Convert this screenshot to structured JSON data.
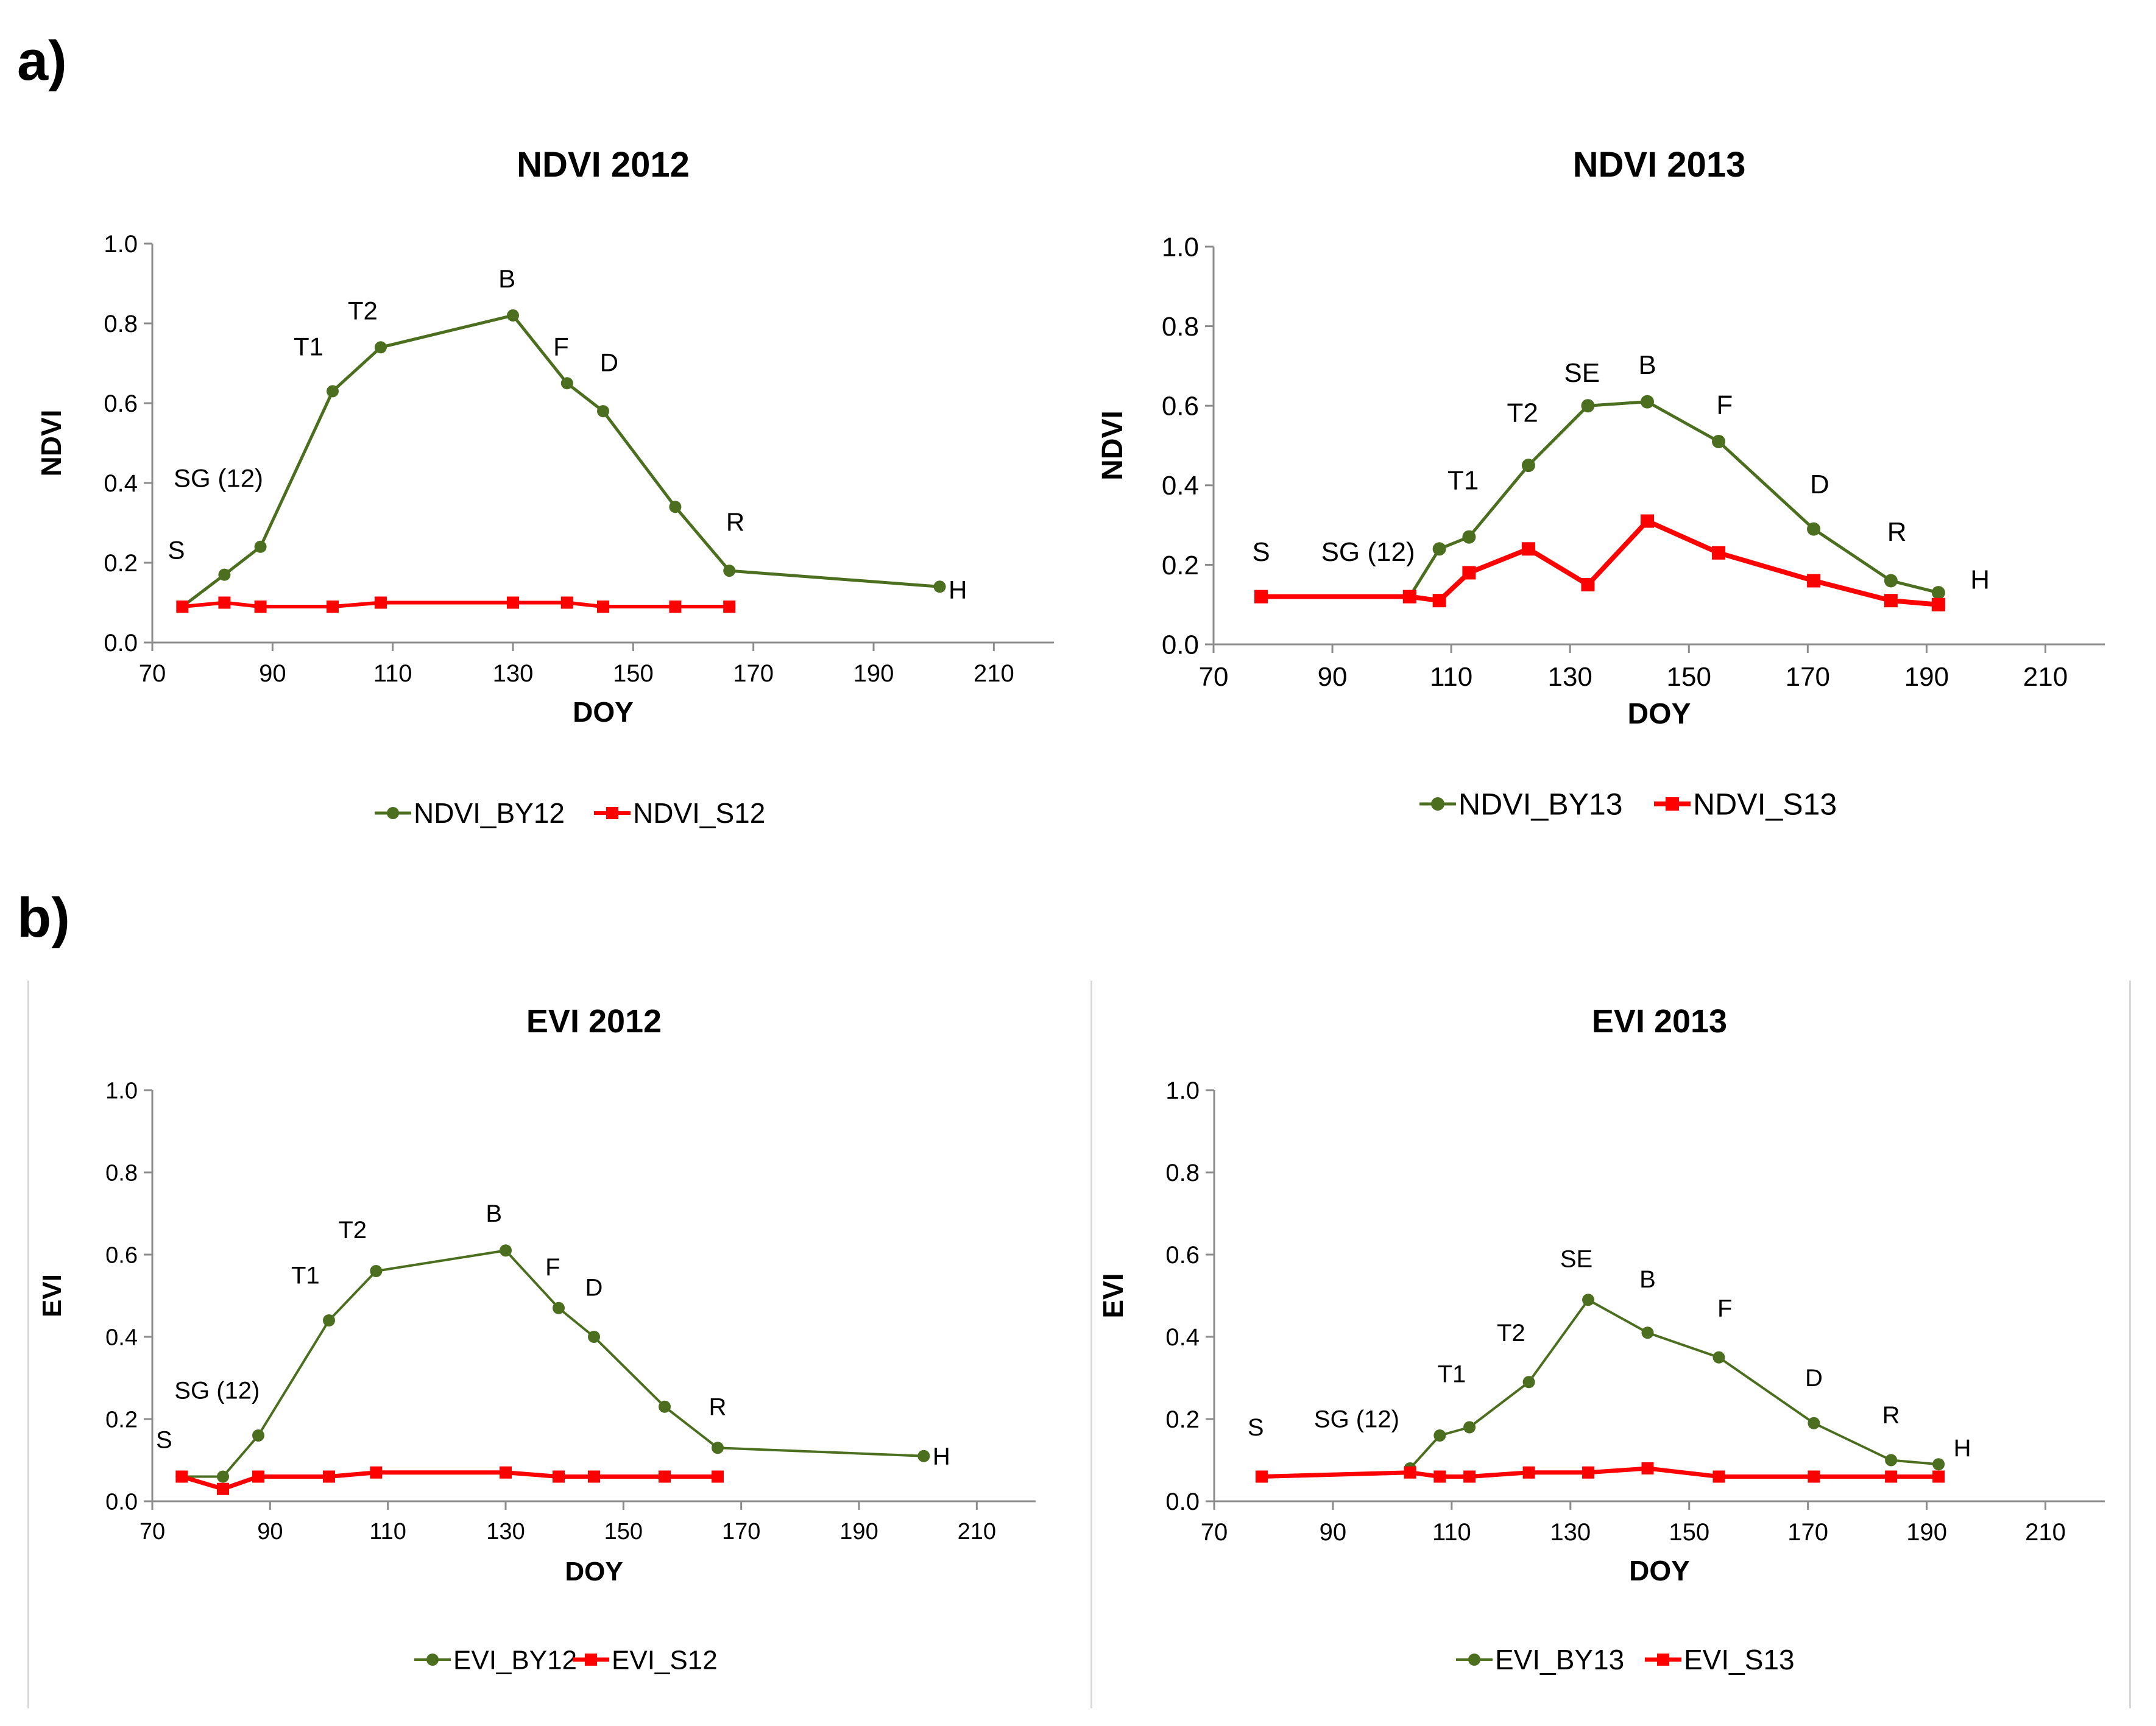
{
  "panels": {
    "a": "a)",
    "b": "b)"
  },
  "colors": {
    "green": "#4b6e1f",
    "red": "#ff0000",
    "axis": "#8c8c8c"
  },
  "chart_data": [
    {
      "id": "ndvi2012",
      "type": "line",
      "title": "NDVI 2012",
      "xlabel": "DOY",
      "ylabel": "NDVI",
      "xlim": [
        70,
        220
      ],
      "ylim": [
        0,
        1.0
      ],
      "xticks": [
        70,
        90,
        110,
        130,
        150,
        170,
        190,
        210
      ],
      "yticks": [
        "0.0",
        "0.2",
        "0.4",
        "0.6",
        "0.8",
        "1.0"
      ],
      "series": [
        {
          "name": "NDVI_BY12",
          "color": "#4b6e1f",
          "marker": "circle",
          "x": [
            75,
            82,
            88,
            100,
            108,
            130,
            139,
            145,
            157,
            166,
            201
          ],
          "y": [
            0.09,
            0.17,
            0.24,
            0.63,
            0.74,
            0.82,
            0.65,
            0.58,
            0.34,
            0.18,
            0.14
          ]
        },
        {
          "name": "NDVI_S12",
          "color": "#ff0000",
          "marker": "square",
          "x": [
            75,
            82,
            88,
            100,
            108,
            130,
            139,
            145,
            157,
            166
          ],
          "y": [
            0.09,
            0.1,
            0.09,
            0.09,
            0.1,
            0.1,
            0.1,
            0.09,
            0.09,
            0.09
          ]
        }
      ],
      "annotations": [
        {
          "text": "S",
          "x": 74,
          "y": 0.21
        },
        {
          "text": "SG (12)",
          "x": 81,
          "y": 0.39
        },
        {
          "text": "T1",
          "x": 96,
          "y": 0.72
        },
        {
          "text": "T2",
          "x": 105,
          "y": 0.81
        },
        {
          "text": "B",
          "x": 129,
          "y": 0.89
        },
        {
          "text": "F",
          "x": 138,
          "y": 0.72
        },
        {
          "text": "D",
          "x": 146,
          "y": 0.68
        },
        {
          "text": "R",
          "x": 167,
          "y": 0.28
        },
        {
          "text": "H",
          "x": 204,
          "y": 0.11
        }
      ]
    },
    {
      "id": "ndvi2013",
      "type": "line",
      "title": "NDVI 2013",
      "xlabel": "DOY",
      "ylabel": "NDVI",
      "xlim": [
        70,
        220
      ],
      "ylim": [
        0,
        1.0
      ],
      "xticks": [
        70,
        90,
        110,
        130,
        150,
        170,
        190,
        210
      ],
      "yticks": [
        "0.0",
        "0.2",
        "0.4",
        "0.6",
        "0.8",
        "1.0"
      ],
      "series": [
        {
          "name": "NDVI_BY13",
          "color": "#4b6e1f",
          "marker": "circle",
          "x": [
            103,
            108,
            113,
            123,
            133,
            143,
            155,
            171,
            184,
            192
          ],
          "y": [
            0.12,
            0.24,
            0.27,
            0.45,
            0.6,
            0.61,
            0.51,
            0.29,
            0.16,
            0.13
          ]
        },
        {
          "name": "NDVI_S13",
          "color": "#ff0000",
          "marker": "square",
          "x": [
            78,
            103,
            108,
            113,
            123,
            133,
            143,
            155,
            171,
            184,
            192
          ],
          "y": [
            0.12,
            0.12,
            0.11,
            0.18,
            0.24,
            0.15,
            0.31,
            0.23,
            0.16,
            0.11,
            0.1
          ]
        }
      ],
      "annotations": [
        {
          "text": "S",
          "x": 78,
          "y": 0.21
        },
        {
          "text": "SG (12)",
          "x": 96,
          "y": 0.21
        },
        {
          "text": "T1",
          "x": 112,
          "y": 0.39
        },
        {
          "text": "T2",
          "x": 122,
          "y": 0.56
        },
        {
          "text": "SE",
          "x": 132,
          "y": 0.66
        },
        {
          "text": "B",
          "x": 143,
          "y": 0.68
        },
        {
          "text": "F",
          "x": 156,
          "y": 0.58
        },
        {
          "text": "D",
          "x": 172,
          "y": 0.38
        },
        {
          "text": "R",
          "x": 185,
          "y": 0.26
        },
        {
          "text": "H",
          "x": 199,
          "y": 0.14
        }
      ]
    },
    {
      "id": "evi2012",
      "type": "line",
      "title": "EVI 2012",
      "xlabel": "DOY",
      "ylabel": "EVI",
      "xlim": [
        70,
        220
      ],
      "ylim": [
        0,
        1.0
      ],
      "xticks": [
        70,
        90,
        110,
        130,
        150,
        170,
        190,
        210
      ],
      "yticks": [
        "0.0",
        "0.2",
        "0.4",
        "0.6",
        "0.8",
        "1.0"
      ],
      "series": [
        {
          "name": "EVI_BY12",
          "color": "#4b6e1f",
          "marker": "circle",
          "x": [
            75,
            82,
            88,
            100,
            108,
            130,
            139,
            145,
            157,
            166,
            201
          ],
          "y": [
            0.06,
            0.06,
            0.16,
            0.44,
            0.56,
            0.61,
            0.47,
            0.4,
            0.23,
            0.13,
            0.11
          ]
        },
        {
          "name": "EVI_S12",
          "color": "#ff0000",
          "marker": "square",
          "x": [
            75,
            82,
            88,
            100,
            108,
            130,
            139,
            145,
            157,
            166
          ],
          "y": [
            0.06,
            0.03,
            0.06,
            0.06,
            0.07,
            0.07,
            0.06,
            0.06,
            0.06,
            0.06
          ]
        }
      ],
      "annotations": [
        {
          "text": "S",
          "x": 72,
          "y": 0.13
        },
        {
          "text": "SG (12)",
          "x": 81,
          "y": 0.25
        },
        {
          "text": "T1",
          "x": 96,
          "y": 0.53
        },
        {
          "text": "T2",
          "x": 104,
          "y": 0.64
        },
        {
          "text": "B",
          "x": 128,
          "y": 0.68
        },
        {
          "text": "F",
          "x": 138,
          "y": 0.55
        },
        {
          "text": "D",
          "x": 145,
          "y": 0.5
        },
        {
          "text": "R",
          "x": 166,
          "y": 0.21
        },
        {
          "text": "H",
          "x": 204,
          "y": 0.09
        }
      ]
    },
    {
      "id": "evi2013",
      "type": "line",
      "title": "EVI 2013",
      "xlabel": "DOY",
      "ylabel": "EVI",
      "xlim": [
        70,
        220
      ],
      "ylim": [
        0,
        1.0
      ],
      "xticks": [
        70,
        90,
        110,
        130,
        150,
        170,
        190,
        210
      ],
      "yticks": [
        "0.0",
        "0.2",
        "0.4",
        "0.6",
        "0.8",
        "1.0"
      ],
      "series": [
        {
          "name": "EVI_BY13",
          "color": "#4b6e1f",
          "marker": "circle",
          "x": [
            103,
            108,
            113,
            123,
            133,
            143,
            155,
            171,
            184,
            192
          ],
          "y": [
            0.08,
            0.16,
            0.18,
            0.29,
            0.49,
            0.41,
            0.35,
            0.19,
            0.1,
            0.09
          ]
        },
        {
          "name": "EVI_S13",
          "color": "#ff0000",
          "marker": "square",
          "x": [
            78,
            103,
            108,
            113,
            123,
            133,
            143,
            155,
            171,
            184,
            192
          ],
          "y": [
            0.06,
            0.07,
            0.06,
            0.06,
            0.07,
            0.07,
            0.08,
            0.06,
            0.06,
            0.06,
            0.06
          ]
        }
      ],
      "annotations": [
        {
          "text": "S",
          "x": 77,
          "y": 0.16
        },
        {
          "text": "SG (12)",
          "x": 94,
          "y": 0.18
        },
        {
          "text": "T1",
          "x": 110,
          "y": 0.29
        },
        {
          "text": "T2",
          "x": 120,
          "y": 0.39
        },
        {
          "text": "SE",
          "x": 131,
          "y": 0.57
        },
        {
          "text": "B",
          "x": 143,
          "y": 0.52
        },
        {
          "text": "F",
          "x": 156,
          "y": 0.45
        },
        {
          "text": "D",
          "x": 171,
          "y": 0.28
        },
        {
          "text": "R",
          "x": 184,
          "y": 0.19
        },
        {
          "text": "H",
          "x": 196,
          "y": 0.11
        }
      ]
    }
  ]
}
